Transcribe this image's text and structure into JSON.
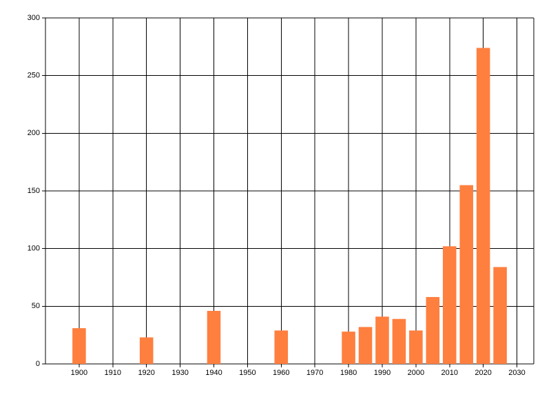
{
  "chart_data": {
    "type": "bar",
    "x": [
      1900,
      1920,
      1940,
      1960,
      1980,
      1985,
      1990,
      1995,
      2000,
      2005,
      2010,
      2015,
      2020,
      2025
    ],
    "values": [
      31,
      23,
      46,
      29,
      28,
      32,
      41,
      39,
      29,
      58,
      102,
      155,
      274,
      84
    ],
    "color": "#ff7f3f",
    "xlim": [
      1890,
      2035
    ],
    "xticks": [
      1900,
      1910,
      1920,
      1930,
      1940,
      1950,
      1960,
      1970,
      1980,
      1990,
      2000,
      2010,
      2020,
      2030
    ],
    "ylim": [
      0,
      300
    ],
    "yticks": [
      0,
      50,
      100,
      150,
      200,
      250,
      300
    ],
    "grid": true
  }
}
